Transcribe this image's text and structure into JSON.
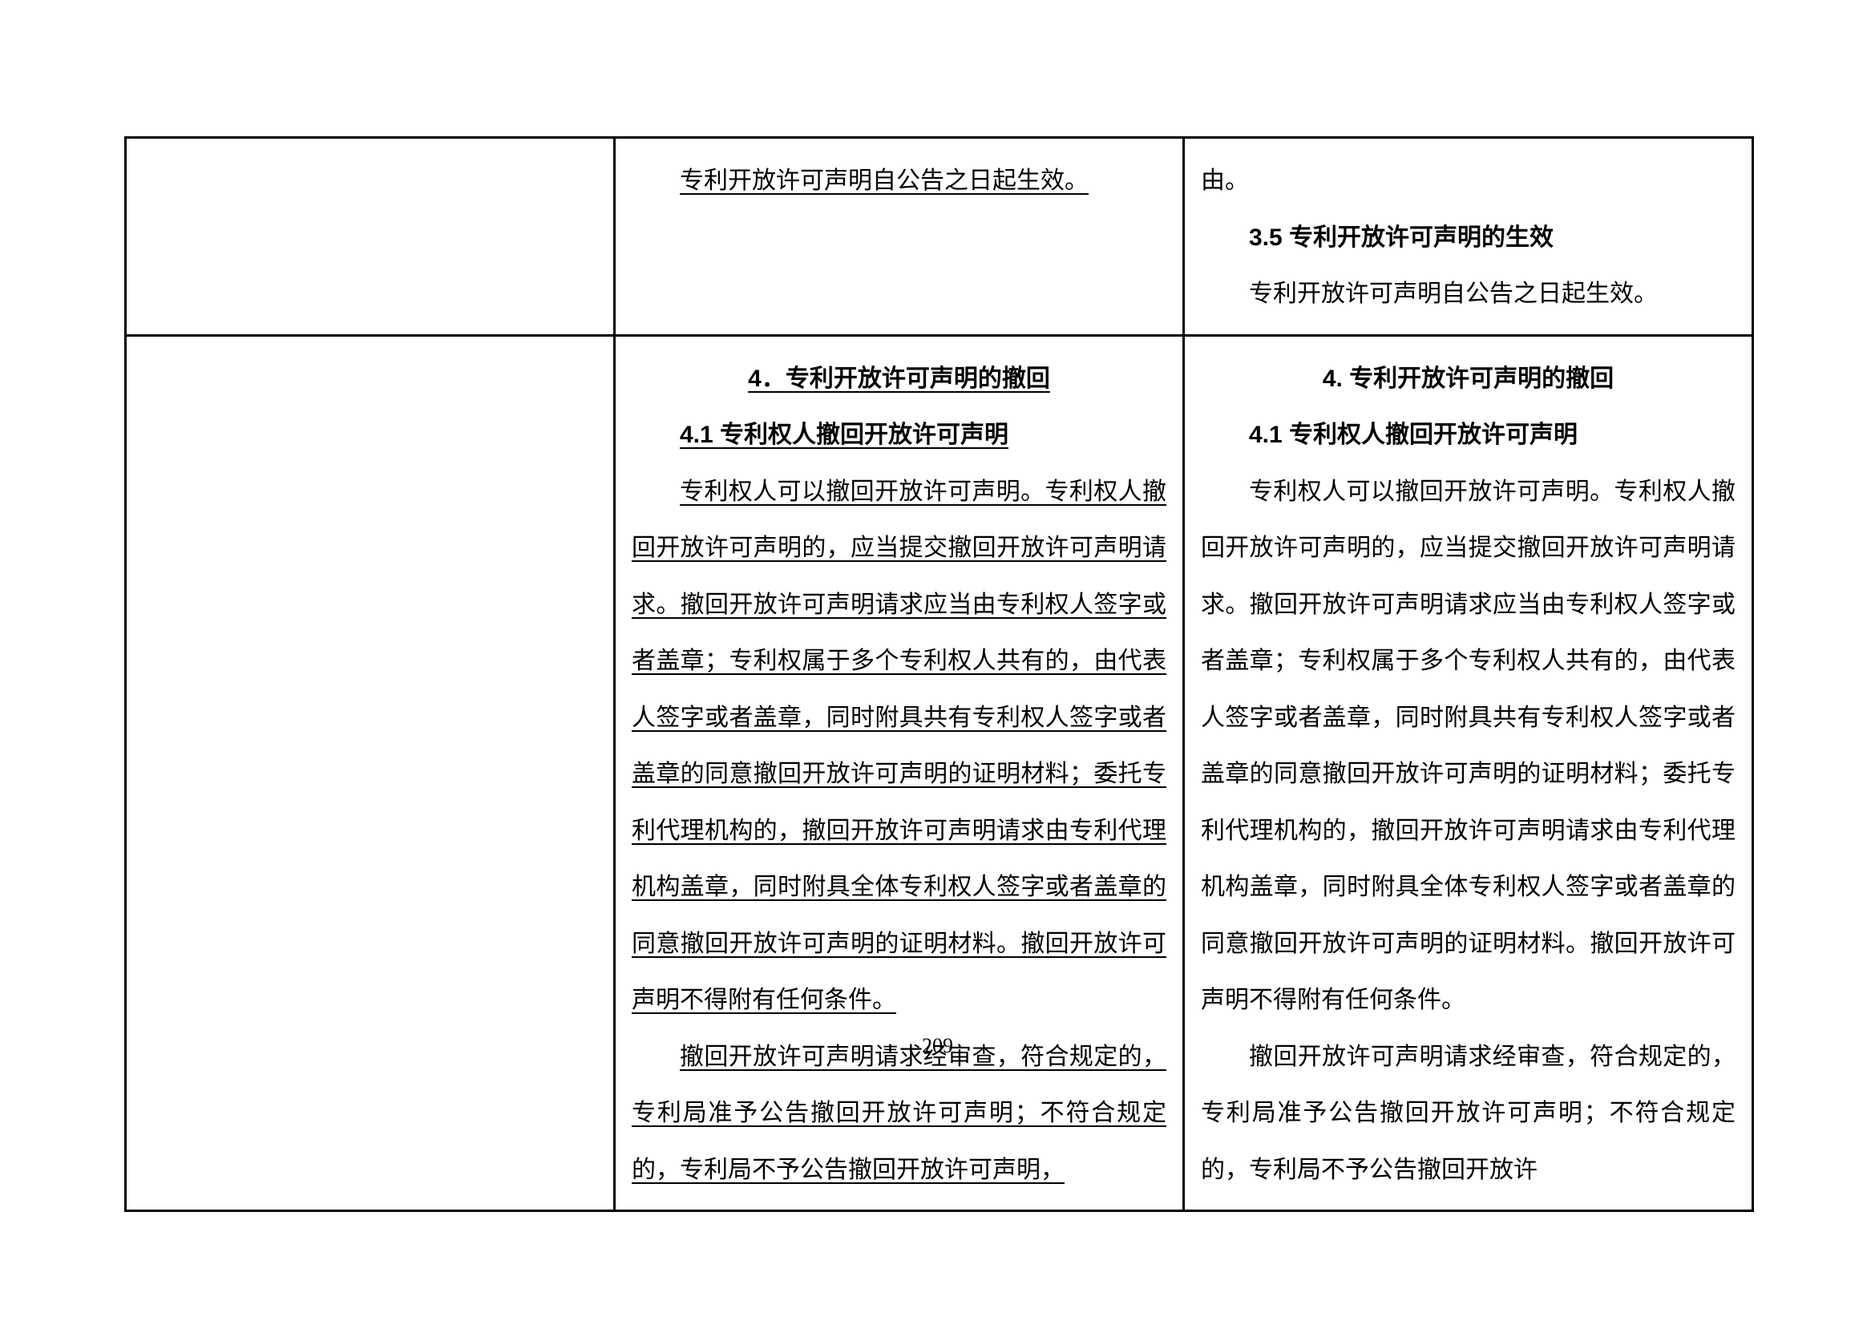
{
  "page_number": "209",
  "row1": {
    "col2": {
      "line1": "专利开放许可声明自公告之日起生效。"
    },
    "col3": {
      "line1": "由。",
      "heading": "3.5 专利开放许可声明的生效",
      "line2": "专利开放许可声明自公告之日起生效。"
    }
  },
  "row2": {
    "col2": {
      "heading1": "4．专利开放许可声明的撤回",
      "heading2": "4.1 专利权人撤回开放许可声明",
      "p1": "专利权人可以撤回开放许可声明。专利权人撤回开放许可声明的，应当提交撤回开放许可声明请求。撤回开放许可声明请求应当由专利权人签字或者盖章；专利权属于多个专利权人共有的，由代表人签字或者盖章，同时附具共有专利权人签字或者盖章的同意撤回开放许可声明的证明材料；委托专利代理机构的，撤回开放许可声明请求由专利代理机构盖章，同时附具全体专利权人签字或者盖章的同意撤回开放许可声明的证明材料。撤回开放许可声明不得附有任何条件。",
      "p2": "撤回开放许可声明请求经审查，符合规定的，专利局准予公告撤回开放许可声明；不符合规定的，专利局不予公告撤回开放许可声明，"
    },
    "col3": {
      "heading1": "4. 专利开放许可声明的撤回",
      "heading2": "4.1 专利权人撤回开放许可声明",
      "p1": "专利权人可以撤回开放许可声明。专利权人撤回开放许可声明的，应当提交撤回开放许可声明请求。撤回开放许可声明请求应当由专利权人签字或者盖章；专利权属于多个专利权人共有的，由代表人签字或者盖章，同时附具共有专利权人签字或者盖章的同意撤回开放许可声明的证明材料；委托专利代理机构的，撤回开放许可声明请求由专利代理机构盖章，同时附具全体专利权人签字或者盖章的同意撤回开放许可声明的证明材料。撤回开放许可声明不得附有任何条件。",
      "p2": "撤回开放许可声明请求经审查，符合规定的，专利局准予公告撤回开放许可声明；不符合规定的，专利局不予公告撤回开放许"
    }
  }
}
